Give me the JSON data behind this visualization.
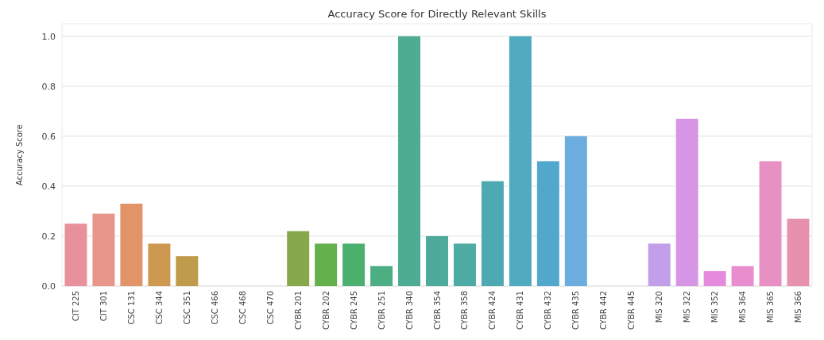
{
  "chart_data": {
    "type": "bar",
    "title": "Accuracy Score for Directly Relevant Skills",
    "ylabel": "Accuracy Score",
    "categories": [
      "CIT 225",
      "CIT 301",
      "CSC 131",
      "CSC 344",
      "CSC 351",
      "CSC 466",
      "CSC 468",
      "CSC 470",
      "CYBR 201",
      "CYBR 202",
      "CYBR 245",
      "CYBR 251",
      "CYBR 340",
      "CYBR 354",
      "CYBR 358",
      "CYBR 424",
      "CYBR 431",
      "CYBR 432",
      "CYBR 435",
      "CYBR 442",
      "CYBR 445",
      "MIS 320",
      "MIS 322",
      "MIS 352",
      "MIS 364",
      "MIS 365",
      "MIS 366"
    ],
    "values": [
      0.25,
      0.29,
      0.33,
      0.17,
      0.12,
      0,
      0,
      0,
      0.22,
      0.17,
      0.17,
      0.08,
      1.0,
      0.2,
      0.17,
      0.42,
      1.0,
      0.5,
      0.6,
      0,
      0,
      0.17,
      0.67,
      0.06,
      0.08,
      0.5,
      0.27
    ],
    "colors": [
      "#e8919c",
      "#e8968a",
      "#e29367",
      "#cd9950",
      "#bf9b4c",
      "#b0a04a",
      "#a0a548",
      "#90a947",
      "#86a84a",
      "#64b04a",
      "#4bb06e",
      "#4cae82",
      "#4dac92",
      "#4eab9c",
      "#4eaba4",
      "#4eaab2",
      "#50aac0",
      "#52a8cc",
      "#6badde",
      "#8aa9e8",
      "#a8a3ea",
      "#c39ee9",
      "#d696e5",
      "#e68ade",
      "#e88ecf",
      "#e890c3",
      "#e691ad"
    ],
    "ylim": [
      0,
      1.05
    ],
    "yticks": [
      {
        "value": 0,
        "label": "0.0"
      },
      {
        "value": 0.2,
        "label": "0.2"
      },
      {
        "value": 0.4,
        "label": "0.4"
      },
      {
        "value": 0.6,
        "label": "0.6"
      },
      {
        "value": 0.8,
        "label": "0.8"
      },
      {
        "value": 1,
        "label": "1.0"
      }
    ],
    "grid": "y"
  }
}
